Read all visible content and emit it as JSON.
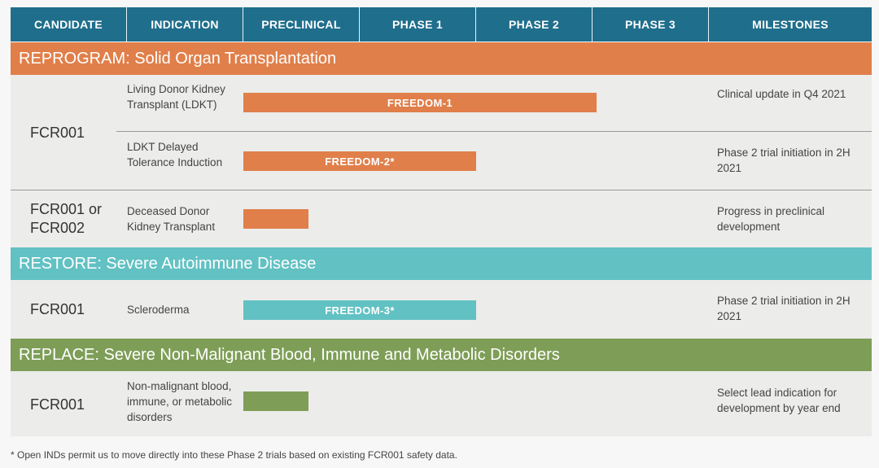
{
  "columns": [
    "CANDIDATE",
    "INDICATION",
    "PRECLINICAL",
    "PHASE 1",
    "PHASE 2",
    "PHASE 3",
    "MILESTONES"
  ],
  "sections": {
    "reprogram": {
      "title": "REPROGRAM: Solid Organ Transplantation",
      "color": "#e07f4a",
      "rows": [
        {
          "candidate": "FCR001",
          "indication": "Living Donor Kidney Transplant (LDKT)",
          "bar_label": "FREEDOM-1",
          "progress": "Phase 2",
          "milestone": "Clinical update in Q4 2021"
        },
        {
          "candidate": "FCR001",
          "indication": "LDKT Delayed Tolerance Induction",
          "bar_label": "FREEDOM-2*",
          "progress": "Phase 1",
          "milestone": "Phase 2 trial initiation in 2H 2021"
        },
        {
          "candidate": "FCR001 or FCR002",
          "indication": "Deceased Donor Kidney Transplant",
          "bar_label": "",
          "progress": "Preclinical",
          "milestone": "Progress in preclinical development"
        }
      ]
    },
    "restore": {
      "title": "RESTORE: Severe Autoimmune Disease",
      "color": "#62c1c3",
      "rows": [
        {
          "candidate": "FCR001",
          "indication": "Scleroderma",
          "bar_label": "FREEDOM-3*",
          "progress": "Phase 1",
          "milestone": "Phase 2 trial initiation in 2H 2021"
        }
      ]
    },
    "replace": {
      "title": "REPLACE: Severe Non-Malignant Blood, Immune and Metabolic Disorders",
      "color": "#7e9e57",
      "rows": [
        {
          "candidate": "FCR001",
          "indication": "Non-malignant blood, immune, or metabolic disorders",
          "bar_label": "",
          "progress": "Preclinical",
          "milestone": "Select lead indication for development by year end"
        }
      ]
    }
  },
  "footnote": "* Open INDs permit us to move directly into these Phase 2 trials based on existing FCR001 safety data."
}
